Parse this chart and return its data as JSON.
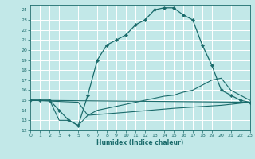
{
  "xlabel": "Humidex (Indice chaleur)",
  "bg_color": "#c2e8e8",
  "grid_color": "#ffffff",
  "line_color": "#1a6b6b",
  "xlim": [
    0,
    23
  ],
  "ylim": [
    12,
    24.5
  ],
  "xticks": [
    0,
    1,
    2,
    3,
    4,
    5,
    6,
    7,
    8,
    9,
    10,
    11,
    12,
    13,
    14,
    15,
    16,
    17,
    18,
    19,
    20,
    21,
    22,
    23
  ],
  "yticks": [
    12,
    13,
    14,
    15,
    16,
    17,
    18,
    19,
    20,
    21,
    22,
    23,
    24
  ],
  "curve_main_x": [
    0,
    1,
    2,
    3,
    4,
    5,
    6,
    7,
    8,
    9,
    10,
    11,
    12,
    13,
    14,
    15,
    16,
    17,
    18,
    19,
    20,
    21,
    22,
    23
  ],
  "curve_main_y": [
    15,
    15,
    15,
    14,
    13,
    12.5,
    15.5,
    19,
    20.5,
    21.0,
    21.5,
    22.5,
    23.0,
    24.0,
    24.2,
    24.2,
    23.5,
    23.0,
    20.5,
    18.5,
    16.0,
    15.5,
    15.0,
    14.8
  ],
  "curve2_x": [
    0,
    1,
    2,
    3,
    4,
    5,
    6,
    7,
    8,
    9,
    10,
    11,
    12,
    13,
    14,
    15,
    16,
    17,
    18,
    19,
    20,
    21,
    22,
    23
  ],
  "curve2_y": [
    15,
    15,
    15,
    13,
    13,
    12.5,
    13.5,
    14.0,
    14.2,
    14.4,
    14.6,
    14.8,
    15.0,
    15.2,
    15.4,
    15.5,
    15.8,
    16.0,
    16.5,
    17.0,
    17.2,
    16.0,
    15.5,
    15.0
  ],
  "curve3_x": [
    0,
    23
  ],
  "curve3_y": [
    15,
    14.8
  ],
  "curve4_x": [
    0,
    5,
    6,
    10,
    15,
    20,
    23
  ],
  "curve4_y": [
    15,
    14.8,
    13.5,
    13.8,
    14.2,
    14.5,
    14.8
  ]
}
